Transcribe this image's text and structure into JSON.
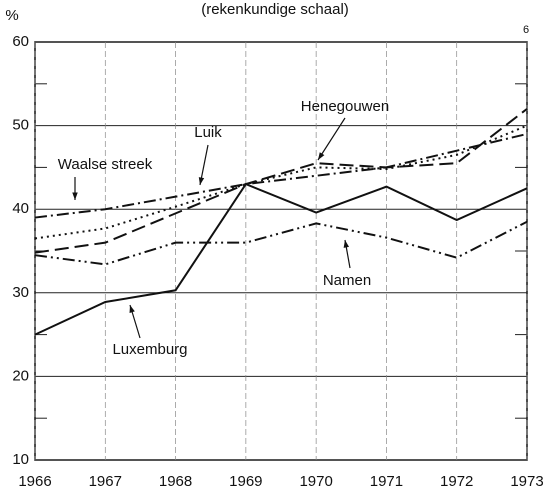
{
  "chart_data": {
    "type": "line",
    "title": "(rekenkundige schaal)",
    "y_label": "%",
    "annotation": "6",
    "x": [
      1966,
      1967,
      1968,
      1969,
      1970,
      1971,
      1972,
      1973
    ],
    "xlim": [
      1966,
      1973
    ],
    "xticks": [
      1966,
      1967,
      1968,
      1969,
      1970,
      1971,
      1972,
      1973
    ],
    "ylim": [
      10,
      60
    ],
    "yticks": [
      10,
      20,
      30,
      40,
      50,
      60
    ],
    "y_minor_ticks": [
      15,
      25,
      35,
      45,
      55
    ],
    "grid": true,
    "series": [
      {
        "name": "Luxemburg",
        "color": "#111111",
        "line_style": "solid",
        "values": [
          25.0,
          28.9,
          30.3,
          43.0,
          39.6,
          42.7,
          38.7,
          42.5
        ]
      },
      {
        "name": "Namen",
        "color": "#111111",
        "line_style": "dashdotdot",
        "values": [
          34.5,
          33.4,
          36.0,
          36.0,
          38.3,
          36.6,
          34.2,
          38.5
        ]
      },
      {
        "name": "Henegouwen",
        "color": "#111111",
        "line_style": "dashed",
        "values": [
          34.8,
          36.0,
          39.5,
          43.0,
          45.5,
          45.0,
          45.5,
          52.0
        ]
      },
      {
        "name": "Luik",
        "color": "#111111",
        "line_style": "dashdot",
        "values": [
          39.0,
          40.0,
          41.5,
          43.0,
          44.0,
          45.0,
          47.0,
          49.0
        ]
      },
      {
        "name": "Waalse streek",
        "color": "#111111",
        "line_style": "dotted",
        "values": [
          36.5,
          37.7,
          40.3,
          43.0,
          45.0,
          44.8,
          46.5,
          50.0
        ]
      }
    ]
  }
}
